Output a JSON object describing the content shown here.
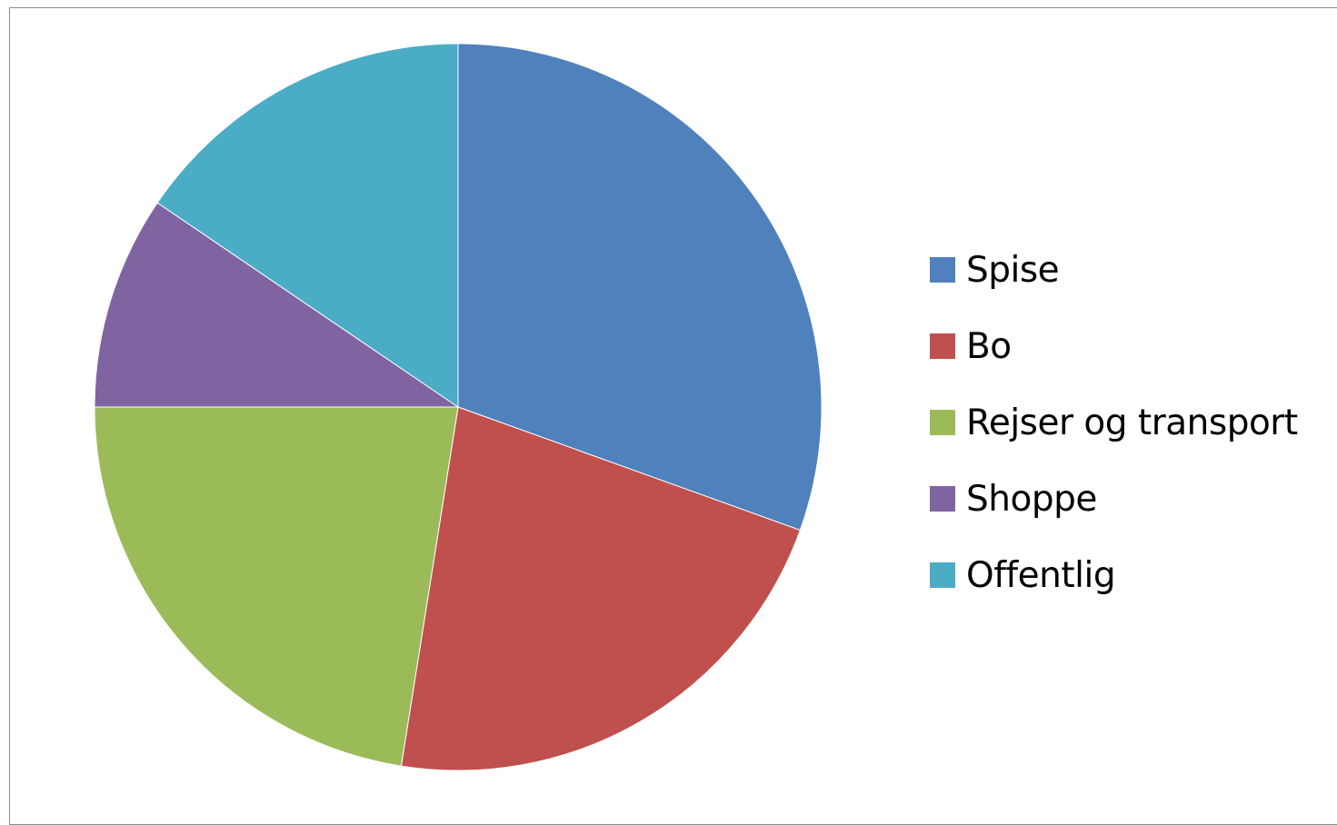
{
  "chart_data": {
    "type": "pie",
    "categories": [
      "Spise",
      "Bo",
      "Rejser og transport",
      "Shoppe",
      "Offentlig"
    ],
    "values": [
      30.5,
      22.0,
      22.5,
      9.5,
      15.5
    ],
    "unit": "percent",
    "colors": [
      "#4F81BD",
      "#C0504D",
      "#9BBB59",
      "#8064A2",
      "#4BACC6"
    ],
    "start_angle": "12 o'clock",
    "direction": "clockwise",
    "legend": {
      "position": "right",
      "entries": [
        "Spise",
        "Bo",
        "Rejser og transport",
        "Shoppe",
        "Offentlig"
      ]
    },
    "title": ""
  }
}
